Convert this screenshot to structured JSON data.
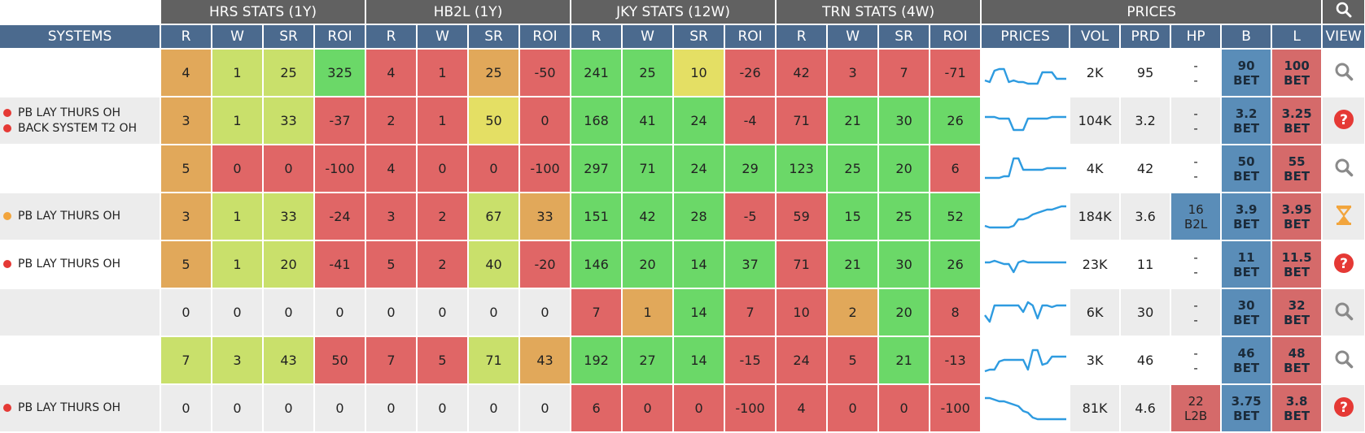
{
  "groups": [
    "HRS STATS (1Y)",
    "HB2L (1Y)",
    "JKY STATS (12W)",
    "TRN STATS (4W)",
    "PRICES"
  ],
  "headers": [
    "SYSTEMS",
    "R",
    "W",
    "SR",
    "ROI",
    "R",
    "W",
    "SR",
    "ROI",
    "R",
    "W",
    "SR",
    "ROI",
    "R",
    "W",
    "SR",
    "ROI",
    "PRICES",
    "VOL",
    "PRD",
    "HP",
    "B",
    "L",
    "VIEW"
  ],
  "icon_names": [
    "search-icon",
    "help-icon",
    "hourglass-icon"
  ],
  "colors": {
    "green": "#6bd868",
    "lightgreen": "#c9e06b",
    "yellow": "#e4df64",
    "orange": "#e1a85a",
    "red": "#e06666",
    "blue": "#4e7fab",
    "bluecell": "#5a8db8",
    "redcell": "#d56a6a",
    "spark": "#2e9be0",
    "dot_red": "#e53935",
    "dot_orange": "#f2a53d"
  },
  "rows": [
    {
      "systems": [],
      "stats": [
        "4",
        "1",
        "25",
        "325",
        "4",
        "1",
        "25",
        "-50",
        "241",
        "25",
        "10",
        "-26",
        "42",
        "3",
        "7",
        "-71"
      ],
      "vol": "2K",
      "prd": "95",
      "hp": [
        "-",
        "-"
      ],
      "b": [
        "90",
        "BET"
      ],
      "l": [
        "100",
        "BET"
      ],
      "view": "search-icon",
      "spark": [
        0.25,
        0.2,
        0.55,
        0.6,
        0.6,
        0.2,
        0.25,
        0.2,
        0.2,
        0.15,
        0.15,
        0.15,
        0.5,
        0.5,
        0.5,
        0.3,
        0.3,
        0.3
      ]
    },
    {
      "systems": [
        {
          "label": "PB LAY THURS OH",
          "dot": "red"
        },
        {
          "label": "BACK SYSTEM T2 OH",
          "dot": "red"
        }
      ],
      "stats": [
        "3",
        "1",
        "33",
        "-37",
        "2",
        "1",
        "50",
        "0",
        "168",
        "41",
        "24",
        "-4",
        "71",
        "21",
        "30",
        "26"
      ],
      "vol": "104K",
      "prd": "3.2",
      "hp": [
        "-",
        "-"
      ],
      "b": [
        "3.2",
        "BET"
      ],
      "l": [
        "3.25",
        "BET"
      ],
      "view": "help-icon",
      "spark": [
        0.6,
        0.6,
        0.6,
        0.55,
        0.55,
        0.55,
        0.2,
        0.2,
        0.2,
        0.55,
        0.55,
        0.55,
        0.55,
        0.55,
        0.6,
        0.6,
        0.6,
        0.6
      ]
    },
    {
      "systems": [],
      "stats": [
        "5",
        "0",
        "0",
        "-100",
        "4",
        "0",
        "0",
        "-100",
        "297",
        "71",
        "24",
        "29",
        "123",
        "25",
        "20",
        "6"
      ],
      "vol": "4K",
      "prd": "42",
      "hp": [
        "-",
        "-"
      ],
      "b": [
        "50",
        "BET"
      ],
      "l": [
        "55",
        "BET"
      ],
      "view": "search-icon",
      "spark": [
        0.2,
        0.2,
        0.2,
        0.2,
        0.25,
        0.25,
        0.8,
        0.8,
        0.45,
        0.45,
        0.45,
        0.45,
        0.45,
        0.5,
        0.5,
        0.5,
        0.5,
        0.5
      ]
    },
    {
      "systems": [
        {
          "label": "PB LAY THURS OH",
          "dot": "orange"
        }
      ],
      "stats": [
        "3",
        "1",
        "33",
        "-24",
        "3",
        "2",
        "67",
        "33",
        "151",
        "42",
        "28",
        "-5",
        "59",
        "15",
        "25",
        "52"
      ],
      "vol": "184K",
      "prd": "3.6",
      "hp": [
        "16",
        "B2L"
      ],
      "b": [
        "3.9",
        "BET"
      ],
      "l": [
        "3.95",
        "BET"
      ],
      "view": "hourglass-icon",
      "spark": [
        0.2,
        0.15,
        0.15,
        0.15,
        0.15,
        0.15,
        0.2,
        0.4,
        0.4,
        0.45,
        0.55,
        0.6,
        0.65,
        0.7,
        0.7,
        0.75,
        0.8,
        0.8
      ]
    },
    {
      "systems": [
        {
          "label": "PB LAY THURS OH",
          "dot": "red"
        }
      ],
      "stats": [
        "5",
        "1",
        "20",
        "-41",
        "5",
        "2",
        "40",
        "-20",
        "146",
        "20",
        "14",
        "37",
        "71",
        "21",
        "30",
        "26"
      ],
      "vol": "23K",
      "prd": "11",
      "hp": [
        "-",
        "-"
      ],
      "b": [
        "11",
        "BET"
      ],
      "l": [
        "11.5",
        "BET"
      ],
      "view": "help-icon",
      "spark": [
        0.55,
        0.55,
        0.6,
        0.55,
        0.5,
        0.5,
        0.25,
        0.55,
        0.6,
        0.55,
        0.55,
        0.55,
        0.55,
        0.55,
        0.55,
        0.55,
        0.55,
        0.55
      ]
    },
    {
      "systems": [],
      "stats": [
        "0",
        "0",
        "0",
        "0",
        "0",
        "0",
        "0",
        "0",
        "7",
        "1",
        "14",
        "7",
        "10",
        "2",
        "20",
        "8"
      ],
      "vol": "6K",
      "prd": "30",
      "hp": [
        "-",
        "-"
      ],
      "b": [
        "30",
        "BET"
      ],
      "l": [
        "32",
        "BET"
      ],
      "view": "search-icon",
      "spark": [
        0.4,
        0.2,
        0.7,
        0.7,
        0.7,
        0.7,
        0.7,
        0.7,
        0.5,
        0.8,
        0.7,
        0.3,
        0.7,
        0.7,
        0.65,
        0.7,
        0.7,
        0.7
      ]
    },
    {
      "systems": [],
      "stats": [
        "7",
        "3",
        "43",
        "50",
        "7",
        "5",
        "71",
        "43",
        "192",
        "27",
        "14",
        "-15",
        "24",
        "5",
        "21",
        "-13"
      ],
      "vol": "3K",
      "prd": "46",
      "hp": [
        "-",
        "-"
      ],
      "b": [
        "46",
        "BET"
      ],
      "l": [
        "48",
        "BET"
      ],
      "view": "search-icon",
      "spark": [
        0.15,
        0.2,
        0.2,
        0.45,
        0.5,
        0.5,
        0.5,
        0.5,
        0.5,
        0.2,
        0.8,
        0.8,
        0.35,
        0.4,
        0.6,
        0.6,
        0.6,
        0.6
      ]
    },
    {
      "systems": [
        {
          "label": "PB LAY THURS OH",
          "dot": "red"
        }
      ],
      "stats": [
        "0",
        "0",
        "0",
        "0",
        "0",
        "0",
        "0",
        "0",
        "6",
        "0",
        "0",
        "-100",
        "4",
        "0",
        "0",
        "-100"
      ],
      "vol": "81K",
      "prd": "4.6",
      "hp": [
        "22",
        "L2B"
      ],
      "b": [
        "3.75",
        "BET"
      ],
      "l": [
        "3.8",
        "BET"
      ],
      "view": "help-icon",
      "spark": [
        0.8,
        0.8,
        0.75,
        0.7,
        0.7,
        0.65,
        0.6,
        0.55,
        0.4,
        0.35,
        0.2,
        0.15,
        0.15,
        0.15,
        0.15,
        0.15,
        0.15,
        0.15
      ]
    }
  ],
  "cell_colors": [
    [
      "orange",
      "lightgreen",
      "lightgreen",
      "green",
      "red",
      "red",
      "orange",
      "red",
      "green",
      "green",
      "yellow",
      "red",
      "red",
      "red",
      "red",
      "red"
    ],
    [
      "orange",
      "lightgreen",
      "lightgreen",
      "red",
      "red",
      "red",
      "yellow",
      "red",
      "green",
      "green",
      "green",
      "red",
      "red",
      "green",
      "green",
      "green"
    ],
    [
      "orange",
      "red",
      "red",
      "red",
      "red",
      "red",
      "red",
      "red",
      "green",
      "green",
      "green",
      "green",
      "green",
      "green",
      "green",
      "red"
    ],
    [
      "orange",
      "lightgreen",
      "lightgreen",
      "red",
      "red",
      "red",
      "lightgreen",
      "orange",
      "green",
      "green",
      "green",
      "red",
      "red",
      "green",
      "green",
      "green"
    ],
    [
      "orange",
      "lightgreen",
      "lightgreen",
      "red",
      "red",
      "red",
      "lightgreen",
      "red",
      "green",
      "green",
      "green",
      "green",
      "red",
      "green",
      "green",
      "green"
    ],
    [
      "none",
      "none",
      "none",
      "none",
      "none",
      "none",
      "none",
      "none",
      "red",
      "orange",
      "green",
      "red",
      "red",
      "orange",
      "green",
      "red"
    ],
    [
      "lightgreen",
      "lightgreen",
      "lightgreen",
      "red",
      "red",
      "red",
      "lightgreen",
      "orange",
      "green",
      "green",
      "green",
      "red",
      "red",
      "red",
      "green",
      "red"
    ],
    [
      "none",
      "none",
      "none",
      "none",
      "none",
      "none",
      "none",
      "none",
      "red",
      "red",
      "red",
      "red",
      "red",
      "red",
      "red",
      "red"
    ]
  ]
}
